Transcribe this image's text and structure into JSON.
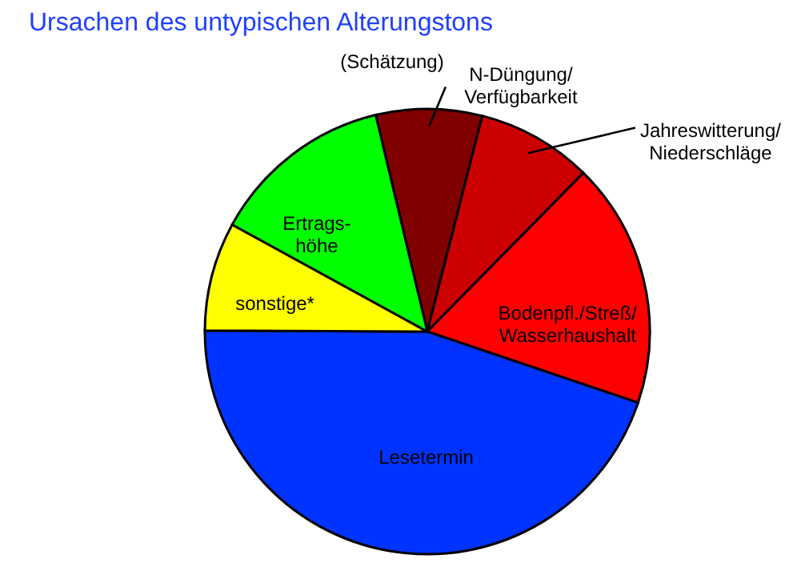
{
  "chart_data": {
    "type": "pie",
    "title": "Ursachen des untypischen Alterungstons",
    "categories": [
      "N-Düngung/\nVerfügbarkeit",
      "Jahreswitterung/\nNiederschläge",
      "Bodenpfl./Streß/\nWasserhaushalt",
      "Lesetermin",
      "sonstige*",
      "Ertrags-\nhöhe"
    ],
    "values": [
      7.7,
      8.4,
      17.8,
      44.9,
      7.9,
      13.3
    ],
    "colors": [
      "#800000",
      "#cc0000",
      "#ff0000",
      "#0033ff",
      "#ffff00",
      "#00ff00"
    ],
    "annotations": [
      "(Schätzung)"
    ]
  }
}
